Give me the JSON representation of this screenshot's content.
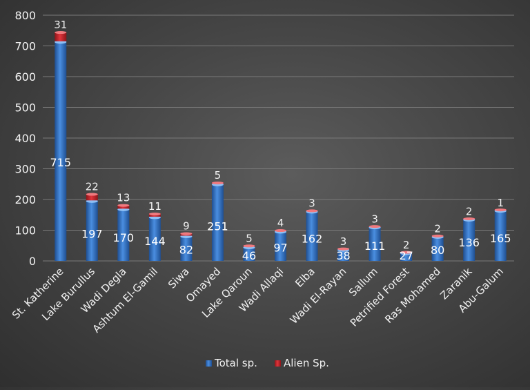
{
  "chart_data": {
    "type": "bar",
    "stacked": true,
    "title": "",
    "xlabel": "",
    "ylabel": "",
    "ylim": [
      0,
      800
    ],
    "ytick_step": 100,
    "yticks": [
      "0",
      "100",
      "200",
      "300",
      "400",
      "500",
      "600",
      "700",
      "800"
    ],
    "grid": true,
    "legend_position": "bottom",
    "categories": [
      "St. Katherine",
      "Lake Burullus",
      "Wadi Degla",
      "Ashtum El-Gamil",
      "Siwa",
      "Omayed",
      "Lake Qaroun",
      "Wadi Allaqi",
      "Elba",
      "Wadi El-Rayan",
      "Sallum",
      "Petrified Forest",
      "Ras Mohamed",
      "Zaranik",
      "Abu-Galum"
    ],
    "series": [
      {
        "name": "Total sp.",
        "color": "#3a78c8",
        "values": [
          715,
          197,
          170,
          144,
          82,
          251,
          46,
          97,
          162,
          38,
          111,
          27,
          80,
          136,
          165
        ]
      },
      {
        "name": "Alien Sp.",
        "color": "#c0272d",
        "values": [
          31,
          22,
          13,
          11,
          9,
          5,
          5,
          4,
          3,
          3,
          3,
          2,
          2,
          2,
          1
        ]
      }
    ]
  }
}
